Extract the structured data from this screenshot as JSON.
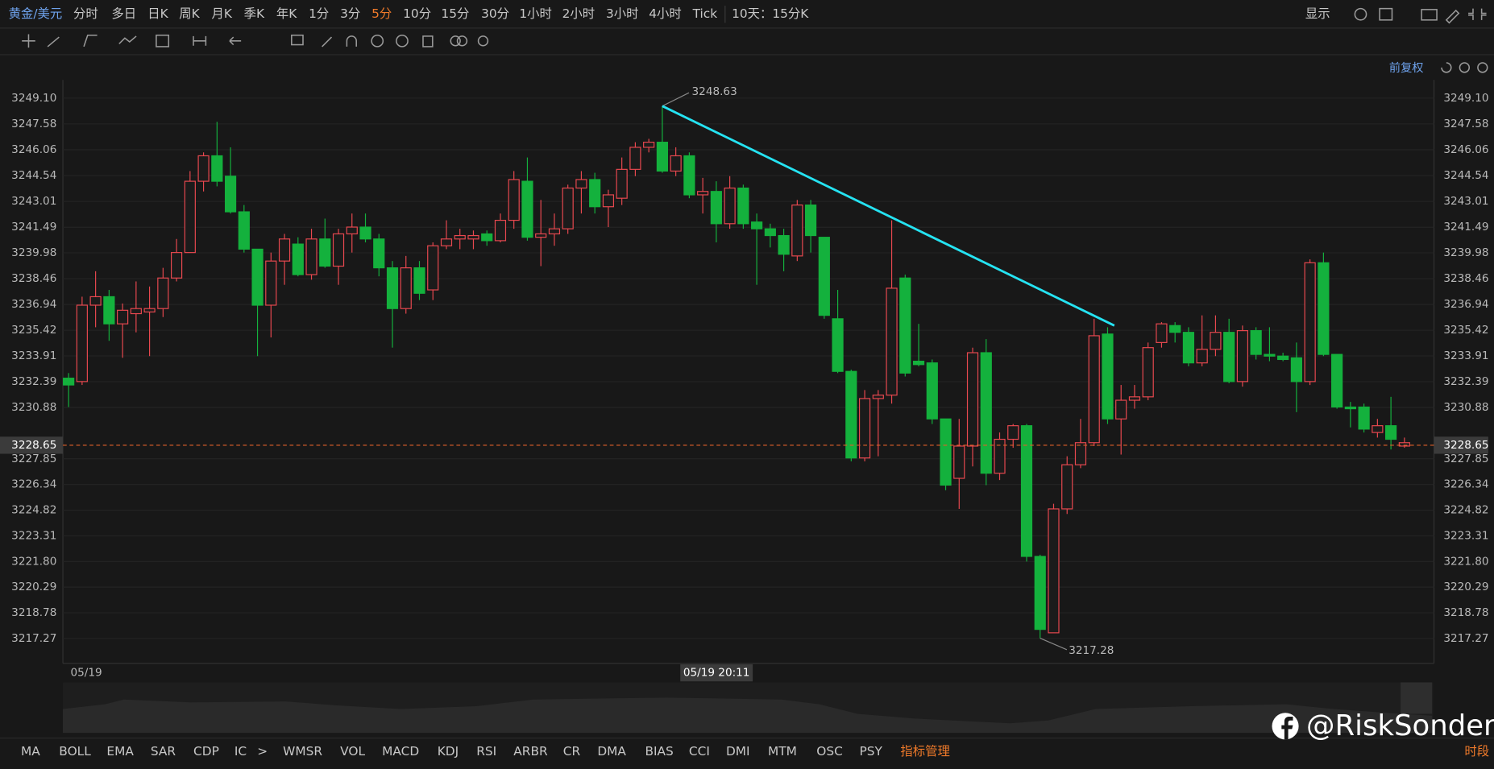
{
  "toolbar": {
    "symbol": "黄金/美元",
    "periods": [
      "分时",
      "多日",
      "日K",
      "周K",
      "月K",
      "季K",
      "年K",
      "1分",
      "3分",
      "5分",
      "10分",
      "15分",
      "30分",
      "1小时",
      "2小时",
      "3小时",
      "4小时",
      "Tick"
    ],
    "active_period": "5分",
    "range": "10天：15分K",
    "display": "显示",
    "adjust": "前复权"
  },
  "indicators": [
    "MA",
    "BOLL",
    "EMA",
    "SAR",
    "CDP",
    "IC",
    ">",
    "WMSR",
    "VOL",
    "MACD",
    "KDJ",
    "RSI",
    "ARBR",
    "CR",
    "DMA",
    "BIAS",
    "CCI",
    "DMI",
    "MTM",
    "OSC",
    "PSY"
  ],
  "indicator_manage": "指标管理",
  "session": "时段",
  "watermark": "@RiskSonder",
  "chart_data": {
    "type": "candlestick",
    "up_color": "#e8484f",
    "down_color": "#14b13d",
    "grid": true,
    "ylim": [
      3215.8,
      3250.0
    ],
    "yticks": [
      {
        "value": 3249.1,
        "label": "3249.10"
      },
      3247.58,
      3246.06,
      3244.54,
      3243.01,
      3241.49,
      3239.98,
      3238.46,
      3236.94,
      3235.42,
      3233.91,
      3232.39,
      3230.88,
      3227.85,
      3226.34,
      3224.82,
      3223.31,
      {
        "value": 3221.8,
        "label": "3221.80"
      },
      3220.29,
      3218.78,
      3217.27
    ],
    "categories": [
      "05/19",
      null,
      null,
      null,
      null,
      null,
      null,
      null,
      null,
      null,
      null,
      null,
      null,
      null,
      null,
      null,
      null,
      null,
      null,
      null,
      null,
      null,
      null,
      null,
      null,
      null,
      null,
      null,
      null,
      null,
      null,
      null,
      null,
      null,
      null,
      null,
      null,
      null,
      null,
      null,
      null,
      null,
      null,
      null,
      null,
      null,
      null,
      null,
      null,
      null,
      null,
      null,
      null,
      null,
      null,
      null,
      null,
      null,
      null,
      null,
      null,
      null,
      null,
      null,
      null,
      null,
      null,
      null,
      null,
      null,
      null,
      null,
      null,
      null,
      null,
      null,
      null,
      null,
      null,
      null,
      null,
      null,
      null,
      null,
      null,
      null,
      null,
      null,
      null,
      null,
      null,
      null,
      null,
      null,
      null,
      null,
      null,
      null,
      null,
      null
    ],
    "open": [
      3232.6,
      3232.4,
      3236.9,
      3237.4,
      3235.8,
      3236.4,
      3236.5,
      3236.7,
      3238.5,
      3240.0,
      3244.2,
      3245.7,
      3244.5,
      3242.4,
      3240.2,
      3236.9,
      3239.5,
      3240.5,
      3238.7,
      3240.8,
      3239.2,
      3241.1,
      3241.5,
      3240.8,
      3239.1,
      3236.7,
      3239.1,
      3237.8,
      3240.4,
      3240.8,
      3240.8,
      3241.1,
      3240.7,
      3241.9,
      3244.2,
      3240.9,
      3241.1,
      3241.4,
      3243.8,
      3244.3,
      3242.7,
      3243.2,
      3244.9,
      3246.2,
      3246.5,
      3244.8,
      3245.7,
      3243.4,
      3243.6,
      3241.7,
      3243.8,
      3241.8,
      3241.4,
      3241.0,
      3239.8,
      3242.8,
      3240.9,
      3236.1,
      3233.0,
      3227.9,
      3231.4,
      3231.6,
      3238.5,
      3233.6,
      3233.5,
      3230.2,
      3226.7,
      3228.6,
      3234.1,
      3227.0,
      3229.0,
      3229.8,
      3222.1,
      3217.6,
      3224.9,
      3227.5,
      3228.8,
      3235.2,
      3230.2,
      3231.3,
      3231.5,
      3234.7,
      3235.7,
      3235.3,
      3233.5,
      3234.3,
      3235.3,
      3232.4,
      3235.4,
      3234.0,
      3233.9,
      3233.8,
      3232.4,
      3239.4,
      3234.0,
      3230.9,
      3230.9,
      3229.4,
      3229.8,
      3228.6
    ],
    "high": [
      3232.9,
      3237.4,
      3238.9,
      3237.8,
      3237.0,
      3238.3,
      3238.0,
      3239.1,
      3240.8,
      3244.8,
      3245.9,
      3247.7,
      3246.2,
      3242.8,
      3240.2,
      3240.0,
      3241.1,
      3240.9,
      3241.4,
      3242.0,
      3241.4,
      3242.3,
      3242.3,
      3241.1,
      3239.5,
      3239.8,
      3239.5,
      3240.6,
      3241.9,
      3241.4,
      3241.3,
      3241.3,
      3242.3,
      3244.8,
      3245.6,
      3243.1,
      3242.3,
      3244.0,
      3244.8,
      3244.7,
      3243.7,
      3245.6,
      3246.5,
      3246.7,
      3248.63,
      3246.2,
      3245.9,
      3244.4,
      3244.2,
      3244.5,
      3244.0,
      3242.3,
      3241.7,
      3241.4,
      3243.1,
      3243.1,
      3240.9,
      3237.8,
      3233.1,
      3231.9,
      3231.9,
      3241.9,
      3238.7,
      3235.8,
      3233.7,
      3230.2,
      3230.2,
      3234.4,
      3234.9,
      3229.4,
      3229.9,
      3229.9,
      3222.2,
      3225.2,
      3228.0,
      3230.2,
      3236.1,
      3235.6,
      3232.2,
      3232.2,
      3234.7,
      3235.9,
      3235.9,
      3235.6,
      3236.3,
      3236.3,
      3236.1,
      3235.7,
      3235.6,
      3235.6,
      3234.1,
      3234.7,
      3239.6,
      3240.0,
      3234.0,
      3231.2,
      3231.1,
      3230.2,
      3231.5,
      3229.1
    ],
    "low": [
      3230.9,
      3232.2,
      3235.6,
      3234.8,
      3233.8,
      3235.3,
      3233.9,
      3236.2,
      3238.3,
      3240.0,
      3243.6,
      3243.9,
      3242.3,
      3240.0,
      3233.9,
      3235.0,
      3238.1,
      3238.6,
      3238.4,
      3239.1,
      3238.1,
      3240.0,
      3240.6,
      3238.6,
      3234.4,
      3236.4,
      3237.2,
      3237.2,
      3240.2,
      3240.2,
      3240.2,
      3240.4,
      3240.6,
      3241.4,
      3240.7,
      3239.2,
      3240.4,
      3241.1,
      3242.3,
      3242.3,
      3241.5,
      3242.8,
      3244.5,
      3245.9,
      3244.7,
      3244.5,
      3243.2,
      3242.3,
      3240.6,
      3241.4,
      3241.4,
      3238.1,
      3240.3,
      3238.9,
      3239.5,
      3240.0,
      3236.1,
      3232.9,
      3227.7,
      3227.7,
      3228.0,
      3231.1,
      3232.7,
      3233.3,
      3229.9,
      3226.0,
      3224.9,
      3227.4,
      3226.3,
      3226.6,
      3228.5,
      3221.8,
      3217.28,
      3217.6,
      3224.6,
      3227.3,
      3228.6,
      3229.9,
      3228.1,
      3230.8,
      3231.3,
      3234.4,
      3234.7,
      3233.3,
      3233.3,
      3233.9,
      3232.3,
      3232.1,
      3233.7,
      3233.6,
      3233.6,
      3230.6,
      3232.2,
      3233.9,
      3230.8,
      3229.7,
      3229.4,
      3229.1,
      3228.4,
      3228.5
    ],
    "close": [
      3232.2,
      3236.9,
      3237.4,
      3235.8,
      3236.6,
      3236.7,
      3236.7,
      3238.5,
      3240.0,
      3244.2,
      3245.7,
      3244.2,
      3242.4,
      3240.2,
      3236.9,
      3239.5,
      3240.8,
      3238.7,
      3240.8,
      3239.2,
      3241.1,
      3241.5,
      3240.8,
      3239.1,
      3236.7,
      3239.1,
      3237.6,
      3240.4,
      3240.8,
      3241.0,
      3241.0,
      3240.7,
      3241.9,
      3244.3,
      3240.9,
      3241.1,
      3241.4,
      3243.8,
      3244.3,
      3242.7,
      3243.4,
      3244.9,
      3246.2,
      3246.5,
      3244.8,
      3245.7,
      3243.4,
      3243.6,
      3241.7,
      3243.8,
      3241.7,
      3241.4,
      3241.0,
      3239.9,
      3242.8,
      3241.0,
      3236.3,
      3233.0,
      3227.9,
      3231.4,
      3231.6,
      3237.9,
      3232.9,
      3233.4,
      3230.2,
      3226.3,
      3228.6,
      3234.1,
      3227.0,
      3229.0,
      3229.8,
      3222.1,
      3217.8,
      3224.9,
      3227.5,
      3228.8,
      3235.1,
      3230.2,
      3231.3,
      3231.5,
      3234.4,
      3235.8,
      3235.3,
      3233.5,
      3234.3,
      3235.3,
      3232.4,
      3235.4,
      3234.0,
      3233.9,
      3233.7,
      3232.4,
      3239.4,
      3234.0,
      3230.9,
      3230.8,
      3229.6,
      3229.8,
      3229.0,
      3228.8
    ],
    "max_label": 3248.63,
    "min_label": 3217.28,
    "last_price": 3228.65,
    "trendline": {
      "color": "#25e3f2",
      "x": [
        44,
        77.5
      ],
      "values": [
        3248.63,
        3235.7
      ]
    },
    "crosshair_label": "05/19 20:11"
  }
}
